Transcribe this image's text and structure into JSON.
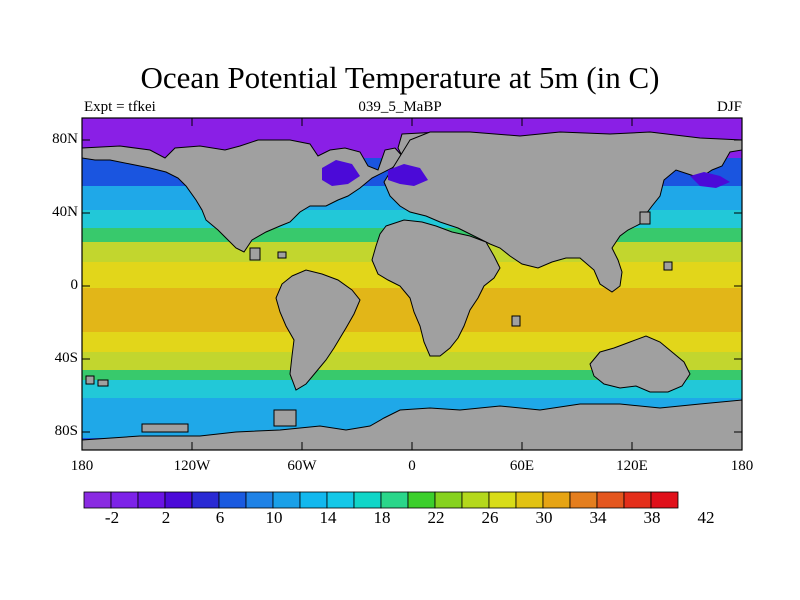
{
  "plot": {
    "title": "Ocean Potential Temperature at 5m (in C)",
    "left_text": "Expt = tfkei",
    "center_text": "039_5_MaBP",
    "right_text": "DJF"
  },
  "axes": {
    "y_ticks": [
      "80N",
      "40N",
      "0",
      "40S",
      "80S"
    ],
    "x_ticks": [
      "180",
      "120W",
      "60W",
      "0",
      "60E",
      "120E",
      "180"
    ]
  },
  "colorbar": {
    "colors": [
      "#8a2be2",
      "#7d22e8",
      "#6a14e4",
      "#4b0ad8",
      "#2a2ad4",
      "#1a5ae0",
      "#1f82e6",
      "#1aa0e8",
      "#12b8ee",
      "#14c8e8",
      "#10d6c8",
      "#2ad68a",
      "#3ccf2c",
      "#86d21e",
      "#b4d81c",
      "#d8dc18",
      "#e2c212",
      "#e6a414",
      "#e47e1e",
      "#e4561e",
      "#e42e1a",
      "#e0101a"
    ],
    "labels": [
      "-2",
      "2",
      "6",
      "10",
      "14",
      "18",
      "22",
      "26",
      "30",
      "34",
      "38",
      "42"
    ]
  },
  "map_colors": {
    "land": "#a0a0a0",
    "polar": "#8a1fe6",
    "cold": "#1a55e0",
    "cool": "#1fa8e8",
    "mid": "#22c8d8",
    "green": "#38c96c",
    "yellowgreen": "#c2d62e",
    "yellow": "#e2d61a",
    "orange": "#e2b618"
  }
}
